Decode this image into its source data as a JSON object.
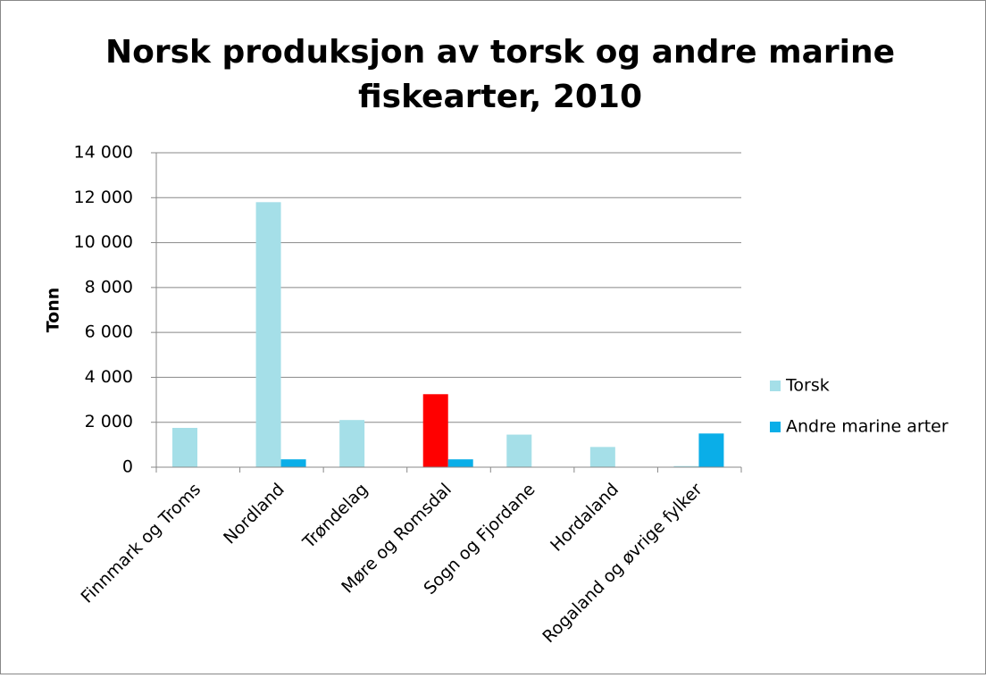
{
  "chart_data": {
    "type": "bar",
    "title": [
      "Norsk produksjon av torsk og andre marine",
      "fiskearter, 2010"
    ],
    "y_label": "Tonn",
    "categories": [
      "Finnmark og Troms",
      "Nordland",
      "Trøndelag",
      "Møre og Romsdal",
      "Sogn og Fjordane",
      "Hordaland",
      "Rogaland og øvrige fylker"
    ],
    "series": [
      {
        "name": "Torsk",
        "color": "#a5dfe8",
        "values": [
          1750,
          11800,
          2100,
          3250,
          1450,
          900,
          50
        ],
        "point_colors": [
          "#a5dfe8",
          "#a5dfe8",
          "#a5dfe8",
          "#ff0000",
          "#a5dfe8",
          "#a5dfe8",
          "#a5dfe8"
        ]
      },
      {
        "name": "Andre marine arter",
        "color": "#0aaee8",
        "values": [
          0,
          350,
          0,
          350,
          0,
          0,
          1500
        ]
      }
    ],
    "ylim": [
      0,
      14000
    ],
    "yticks": [
      0,
      {
        "value": 2000,
        "label": "2 000"
      },
      {
        "value": 4000,
        "label": "4 000"
      },
      {
        "value": 6000,
        "label": "6 000"
      },
      {
        "value": 8000,
        "label": "8 000"
      },
      {
        "value": 10000,
        "label": "10 000"
      },
      {
        "value": 12000,
        "label": "12 000"
      },
      {
        "value": 14000,
        "label": "14 000"
      }
    ],
    "grid": true,
    "legend": "right"
  }
}
